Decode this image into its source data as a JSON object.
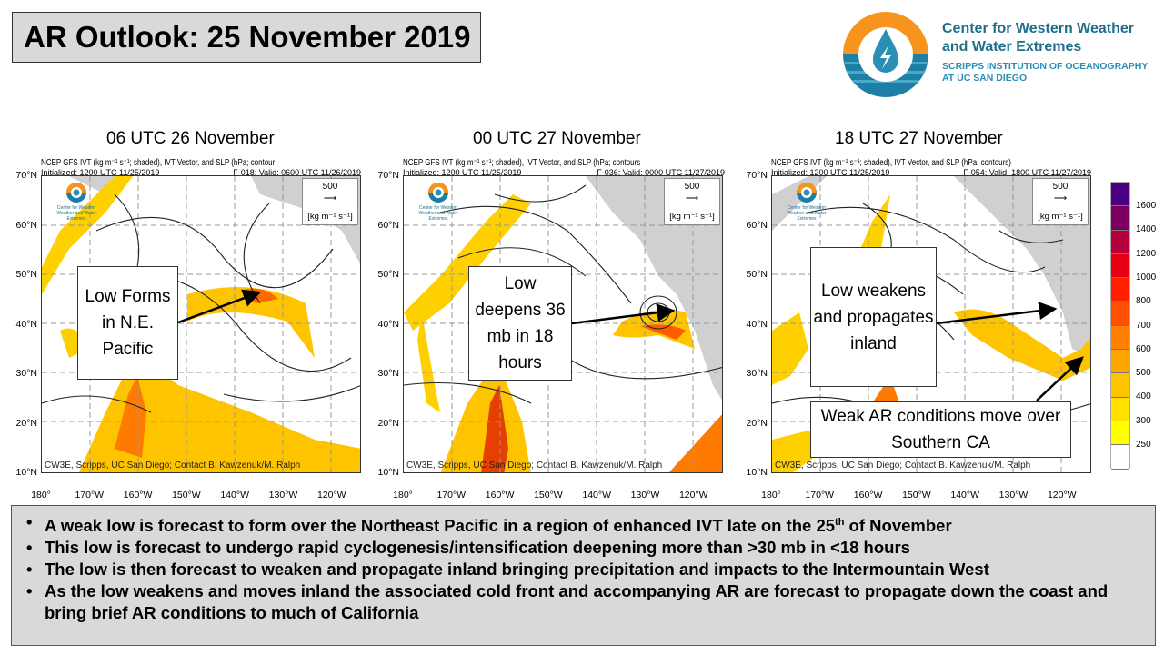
{
  "title": "AR Outlook: 25 November 2019",
  "logo": {
    "org_line1": "Center for Western Weather",
    "org_line2": "and Water Extremes",
    "sub_line1": "SCRIPPS INSTITUTION OF OCEANOGRAPHY",
    "sub_line2": "AT UC SAN DIEGO"
  },
  "panels": [
    {
      "title": "06 UTC 26 November",
      "header": "NCEP GFS IVT (kg m⁻¹ s⁻¹; shaded), IVT Vector, and SLP (hPa; contour",
      "initialized": "Initialized: 1200 UTC 11/25/2019",
      "valid": "F-018: Valid: 0600 UTC 11/26/2019",
      "callout": "Low Forms in N.E. Pacific"
    },
    {
      "title": "00 UTC 27 November",
      "header": "NCEP GFS IVT (kg m⁻¹ s⁻¹; shaded), IVT Vector, and SLP (hPa; contours",
      "initialized": "Initialized: 1200 UTC 11/25/2019",
      "valid": "F-036: Valid: 0000 UTC 11/27/2019",
      "callout": "Low deepens 36 mb in 18 hours"
    },
    {
      "title": "18 UTC 27 November",
      "header": "NCEP GFS IVT (kg m⁻¹ s⁻¹; shaded), IVT Vector, and SLP (hPa; contours)",
      "initialized": "Initialized: 1200 UTC 11/25/2019",
      "valid": "F-054: Valid: 1800 UTC 11/27/2019",
      "callout": "Low weakens and propagates inland",
      "callout2": "Weak AR conditions move over Southern CA"
    }
  ],
  "map_common": {
    "vector_ref": "500",
    "vector_unit": "[kg m⁻¹ s⁻¹]",
    "logo_text": "Center for Western Weather and Water Extremes",
    "credit": "CW3E, Scripps, UC San Diego; Contact B. Kawzenuk/M. Ralph",
    "lat_labels": [
      "70°N",
      "60°N",
      "50°N",
      "40°N",
      "30°N",
      "20°N",
      "10°N"
    ],
    "lon_labels": [
      "180°",
      "170°W",
      "160°W",
      "150°W",
      "140°W",
      "130°W",
      "120°W"
    ]
  },
  "colorbar": {
    "labels": [
      "1600",
      "1400",
      "1200",
      "1000",
      "800",
      "700",
      "600",
      "500",
      "400",
      "300",
      "250"
    ],
    "colors": [
      "#4b0082",
      "#7d0060",
      "#b5003c",
      "#e60012",
      "#ff2000",
      "#ff5000",
      "#ff7f00",
      "#ffa500",
      "#ffc400",
      "#ffe000",
      "#ffff00",
      "#ffffff"
    ]
  },
  "bullets": [
    {
      "text": "A weak low is forecast to form over the Northeast Pacific in a region of enhanced IVT late on the 25",
      "sup": "th",
      "tail": " of November"
    },
    {
      "text": "This low is forecast to undergo rapid cyclogenesis/intensification deepening more than >30 mb in <18 hours"
    },
    {
      "text": "The low is then forecast to weaken and propagate inland bringing precipitation and impacts to the Intermountain West"
    },
    {
      "text": "As the low weakens and moves inland the associated cold front and accompanying AR are forecast to propagate down the coast and bring brief AR conditions to much of California"
    }
  ]
}
